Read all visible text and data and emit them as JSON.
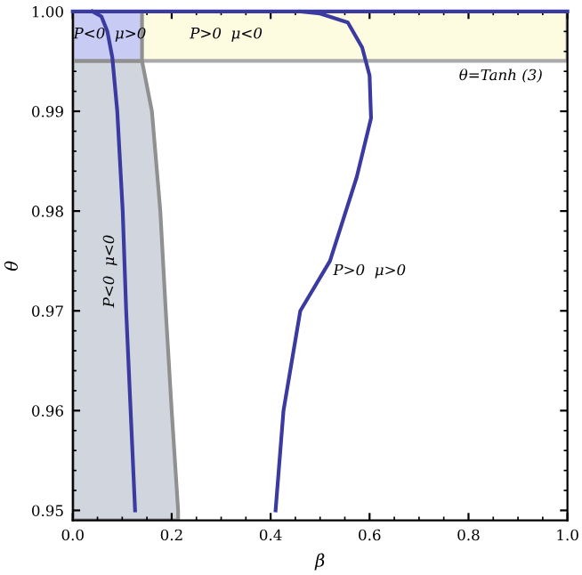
{
  "chart_data": {
    "type": "line",
    "xlabel": "β",
    "ylabel": "θ",
    "xlim": [
      0,
      1
    ],
    "ylim": [
      0.949,
      1.0
    ],
    "xticks": [
      {
        "value": 0,
        "label": "0.0"
      },
      0.2,
      0.4,
      0.6,
      0.8,
      {
        "value": 1,
        "label": "1.0"
      }
    ],
    "yticks": [
      0.95,
      0.96,
      0.97,
      0.98,
      0.99,
      {
        "value": 1.0,
        "label": "1.00"
      }
    ],
    "bands": [
      {
        "axis": "y",
        "from": 0.99505,
        "to": 1.0,
        "label": "θ=Tanh (3)",
        "color": "#fdfbe0"
      }
    ],
    "series": [
      {
        "type": "area",
        "color": "#d0d5de",
        "x": [
          0,
          0.14,
          0.16,
          0.177,
          0.188,
          0.2,
          0.213
        ],
        "values": [
          0.99505,
          0.99505,
          0.99,
          0.98,
          0.97,
          0.96,
          0.95
        ]
      },
      {
        "type": "area",
        "color": "#c8ccf5",
        "x": [
          0,
          0.14
        ],
        "values": [
          1.0,
          1.0
        ]
      },
      {
        "color": "#3a3aa0",
        "x": [
          0,
          1
        ],
        "values": [
          1.0,
          1.0
        ]
      },
      {
        "color": "#3a3aa0",
        "x": [
          0.04,
          0.058,
          0.07,
          0.08,
          0.09,
          0.101,
          0.108,
          0.117,
          0.126
        ],
        "values": [
          1.0,
          0.9995,
          0.998,
          0.9954,
          0.99,
          0.98,
          0.97,
          0.96,
          0.95
        ]
      },
      {
        "color": "#3a3aa0",
        "x": [
          0.41,
          0.426,
          0.46,
          0.52,
          0.574,
          0.603,
          0.6,
          0.585,
          0.556,
          0.5,
          0.46
        ],
        "values": [
          0.95,
          0.96,
          0.97,
          0.975,
          0.9834,
          0.9893,
          0.9936,
          0.9964,
          0.9989,
          0.9998,
          1.0
        ]
      }
    ],
    "annotations": [
      "P<0  μ>0",
      "P>0  μ<0",
      "P<0  μ<0",
      "P>0  μ>0"
    ],
    "grid": false,
    "legend": false
  }
}
